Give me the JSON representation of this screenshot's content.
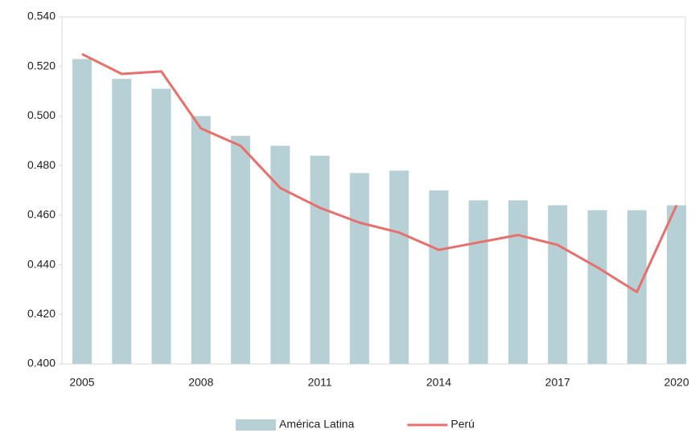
{
  "chart_data": {
    "type": "bar+line",
    "categories": [
      "2005",
      null,
      null,
      "2008",
      null,
      null,
      "2011",
      null,
      null,
      "2014",
      null,
      null,
      "2017",
      null,
      null,
      "2020"
    ],
    "series": [
      {
        "name": "América Latina",
        "type": "bar",
        "color": "#b7d0d6",
        "values": [
          0.523,
          0.515,
          0.511,
          0.5,
          0.492,
          0.488,
          0.484,
          0.477,
          0.478,
          0.47,
          0.466,
          0.466,
          0.464,
          0.462,
          0.462,
          0.464
        ]
      },
      {
        "name": "Perú",
        "type": "line",
        "color": "#e8706c",
        "values": [
          0.525,
          0.517,
          0.518,
          0.495,
          0.488,
          0.471,
          0.463,
          0.457,
          0.453,
          0.446,
          0.449,
          0.452,
          0.448,
          0.439,
          0.429,
          0.464
        ]
      }
    ],
    "ylim": [
      0.4,
      0.54
    ],
    "yticks": [
      {
        "value": 0.4,
        "label": "0.400"
      },
      {
        "value": 0.42,
        "label": "0.420"
      },
      {
        "value": 0.44,
        "label": "0.440"
      },
      {
        "value": 0.46,
        "label": "0.460"
      },
      {
        "value": 0.48,
        "label": "0.480"
      },
      {
        "value": 0.5,
        "label": "0.500"
      },
      {
        "value": 0.52,
        "label": "0.520"
      },
      {
        "value": 0.54,
        "label": "0.540"
      }
    ],
    "legend": "bottom"
  }
}
